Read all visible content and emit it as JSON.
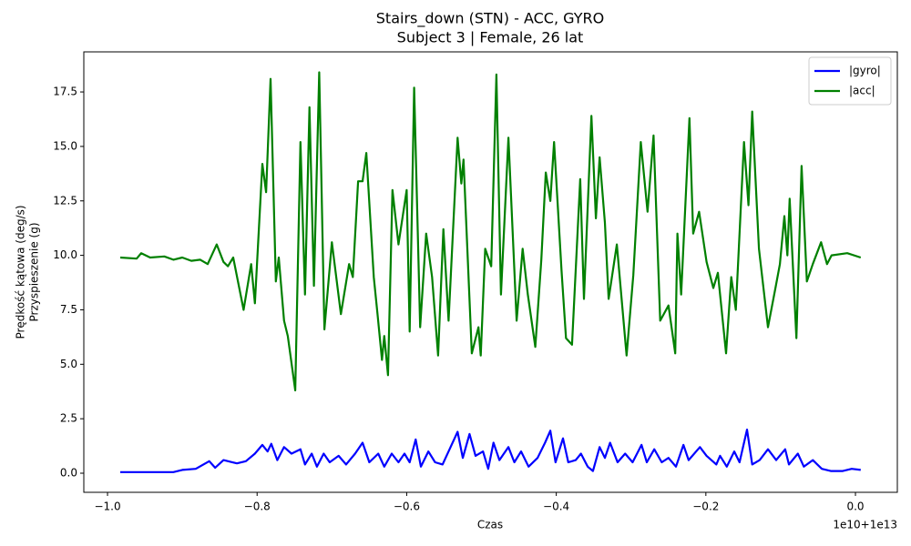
{
  "chart_data": {
    "type": "line",
    "title": "Stairs_down (STN) - ACC, GYRO",
    "subtitle": "Subject 3 | Female, 26 lat",
    "xlabel": "Czas",
    "ylabel": [
      "Prędkość kątowa (deg/s)",
      "Przyspieszenie (g)"
    ],
    "x_offset_label": "1e10+1e13",
    "xlim": [
      -1.0317,
      0.056
    ],
    "ylim": [
      -0.877,
      19.34
    ],
    "xticks": [
      {
        "value": -1.0,
        "label": "−1.0"
      },
      {
        "value": -0.8,
        "label": "−0.8"
      },
      {
        "value": -0.6,
        "label": "−0.6"
      },
      {
        "value": -0.4,
        "label": "−0.4"
      },
      {
        "value": -0.2,
        "label": "−0.2"
      },
      {
        "value": 0,
        "label": "0.0"
      }
    ],
    "yticks": [
      {
        "value": 0,
        "label": "0.0"
      },
      2.5,
      {
        "value": 5,
        "label": "5.0"
      },
      7.5,
      {
        "value": 10,
        "label": "10.0"
      },
      12.5,
      {
        "value": 15,
        "label": "15.0"
      },
      17.5
    ],
    "grid": false,
    "legend": "upper right",
    "series": [
      {
        "name": "|gyro|",
        "color": "#0000ff",
        "x": [
          -0.983,
          -0.949,
          -0.912,
          -0.9,
          -0.882,
          -0.864,
          -0.856,
          -0.845,
          -0.827,
          -0.815,
          -0.803,
          -0.793,
          -0.786,
          -0.781,
          -0.773,
          -0.764,
          -0.754,
          -0.742,
          -0.736,
          -0.727,
          -0.72,
          -0.711,
          -0.703,
          -0.691,
          -0.681,
          -0.669,
          -0.659,
          -0.65,
          -0.638,
          -0.63,
          -0.62,
          -0.611,
          -0.603,
          -0.596,
          -0.588,
          -0.581,
          -0.571,
          -0.562,
          -0.552,
          -0.544,
          -0.532,
          -0.525,
          -0.516,
          -0.508,
          -0.498,
          -0.491,
          -0.484,
          -0.476,
          -0.464,
          -0.456,
          -0.447,
          -0.437,
          -0.425,
          -0.415,
          -0.408,
          -0.401,
          -0.391,
          -0.384,
          -0.374,
          -0.367,
          -0.358,
          -0.351,
          -0.342,
          -0.335,
          -0.328,
          -0.318,
          -0.308,
          -0.298,
          -0.286,
          -0.279,
          -0.269,
          -0.259,
          -0.25,
          -0.24,
          -0.23,
          -0.223,
          -0.208,
          -0.199,
          -0.186,
          -0.181,
          -0.172,
          -0.162,
          -0.155,
          -0.145,
          -0.138,
          -0.128,
          -0.117,
          -0.106,
          -0.094,
          -0.089,
          -0.077,
          -0.069,
          -0.057,
          -0.045,
          -0.033,
          -0.017,
          -0.005,
          0.007
        ],
        "values": [
          0.05,
          0.05,
          0.05,
          0.15,
          0.2,
          0.55,
          0.25,
          0.6,
          0.45,
          0.55,
          0.9,
          1.3,
          1.0,
          1.35,
          0.6,
          1.2,
          0.9,
          1.1,
          0.4,
          0.9,
          0.3,
          0.9,
          0.5,
          0.8,
          0.4,
          0.9,
          1.4,
          0.5,
          0.9,
          0.3,
          0.9,
          0.5,
          0.9,
          0.5,
          1.55,
          0.3,
          1.0,
          0.5,
          0.4,
          1.0,
          1.9,
          0.7,
          1.8,
          0.8,
          1.0,
          0.2,
          1.4,
          0.6,
          1.2,
          0.5,
          1.0,
          0.3,
          0.7,
          1.4,
          1.95,
          0.5,
          1.6,
          0.5,
          0.6,
          0.9,
          0.3,
          0.1,
          1.2,
          0.7,
          1.4,
          0.5,
          0.9,
          0.5,
          1.3,
          0.5,
          1.1,
          0.5,
          0.7,
          0.3,
          1.3,
          0.6,
          1.2,
          0.8,
          0.4,
          0.8,
          0.3,
          1.0,
          0.5,
          2.0,
          0.4,
          0.6,
          1.1,
          0.6,
          1.1,
          0.4,
          0.9,
          0.3,
          0.6,
          0.2,
          0.1,
          0.1,
          0.2,
          0.15
        ]
      },
      {
        "name": "|acc|",
        "color": "#008000",
        "x": [
          -0.983,
          -0.961,
          -0.955,
          -0.943,
          -0.924,
          -0.912,
          -0.9,
          -0.888,
          -0.876,
          -0.866,
          -0.854,
          -0.845,
          -0.839,
          -0.832,
          -0.818,
          -0.808,
          -0.803,
          -0.793,
          -0.788,
          -0.782,
          -0.775,
          -0.771,
          -0.764,
          -0.759,
          -0.749,
          -0.742,
          -0.736,
          -0.73,
          -0.724,
          -0.717,
          -0.71,
          -0.7,
          -0.688,
          -0.677,
          -0.672,
          -0.665,
          -0.659,
          -0.654,
          -0.644,
          -0.639,
          -0.633,
          -0.63,
          -0.625,
          -0.619,
          -0.611,
          -0.6,
          -0.596,
          -0.59,
          -0.582,
          -0.574,
          -0.566,
          -0.558,
          -0.551,
          -0.544,
          -0.532,
          -0.527,
          -0.524,
          -0.513,
          -0.504,
          -0.501,
          -0.495,
          -0.487,
          -0.48,
          -0.474,
          -0.464,
          -0.453,
          -0.445,
          -0.438,
          -0.428,
          -0.42,
          -0.414,
          -0.408,
          -0.403,
          -0.393,
          -0.387,
          -0.379,
          -0.368,
          -0.363,
          -0.353,
          -0.347,
          -0.342,
          -0.335,
          -0.33,
          -0.319,
          -0.306,
          -0.297,
          -0.287,
          -0.278,
          -0.27,
          -0.261,
          -0.25,
          -0.241,
          -0.238,
          -0.233,
          -0.222,
          -0.217,
          -0.209,
          -0.199,
          -0.19,
          -0.184,
          -0.173,
          -0.166,
          -0.16,
          -0.149,
          -0.143,
          -0.138,
          -0.129,
          -0.117,
          -0.107,
          -0.101,
          -0.095,
          -0.091,
          -0.088,
          -0.079,
          -0.072,
          -0.065,
          -0.057,
          -0.046,
          -0.038,
          -0.032,
          -0.011,
          0.007
        ],
        "values": [
          9.9,
          9.85,
          10.1,
          9.9,
          9.95,
          9.8,
          9.9,
          9.75,
          9.8,
          9.6,
          10.5,
          9.7,
          9.5,
          9.9,
          7.5,
          9.6,
          7.8,
          14.2,
          12.9,
          18.1,
          8.8,
          9.9,
          7.0,
          6.3,
          3.8,
          15.2,
          8.2,
          16.8,
          8.6,
          18.4,
          6.6,
          10.6,
          7.3,
          9.6,
          9.0,
          13.4,
          13.4,
          14.7,
          9.0,
          7.3,
          5.2,
          6.3,
          4.5,
          13.0,
          10.5,
          13.0,
          6.5,
          17.7,
          6.7,
          11.0,
          9.0,
          5.4,
          11.2,
          7.0,
          15.4,
          13.3,
          14.4,
          5.5,
          6.7,
          5.4,
          10.3,
          9.5,
          18.3,
          8.2,
          15.4,
          7.0,
          10.3,
          8.2,
          5.8,
          9.8,
          13.8,
          12.5,
          15.2,
          9.3,
          6.2,
          5.9,
          13.5,
          8.0,
          16.4,
          11.7,
          14.5,
          11.5,
          8.0,
          10.5,
          5.4,
          9.1,
          15.2,
          12.0,
          15.5,
          7.0,
          7.7,
          5.5,
          11.0,
          8.2,
          16.3,
          11.0,
          12.0,
          9.7,
          8.5,
          9.2,
          5.5,
          9.0,
          7.5,
          15.2,
          12.3,
          16.6,
          10.3,
          6.7,
          8.5,
          9.6,
          11.8,
          10.0,
          12.6,
          6.2,
          14.1,
          8.8,
          9.6,
          10.6,
          9.6,
          10.0,
          10.1,
          9.9
        ]
      }
    ]
  }
}
